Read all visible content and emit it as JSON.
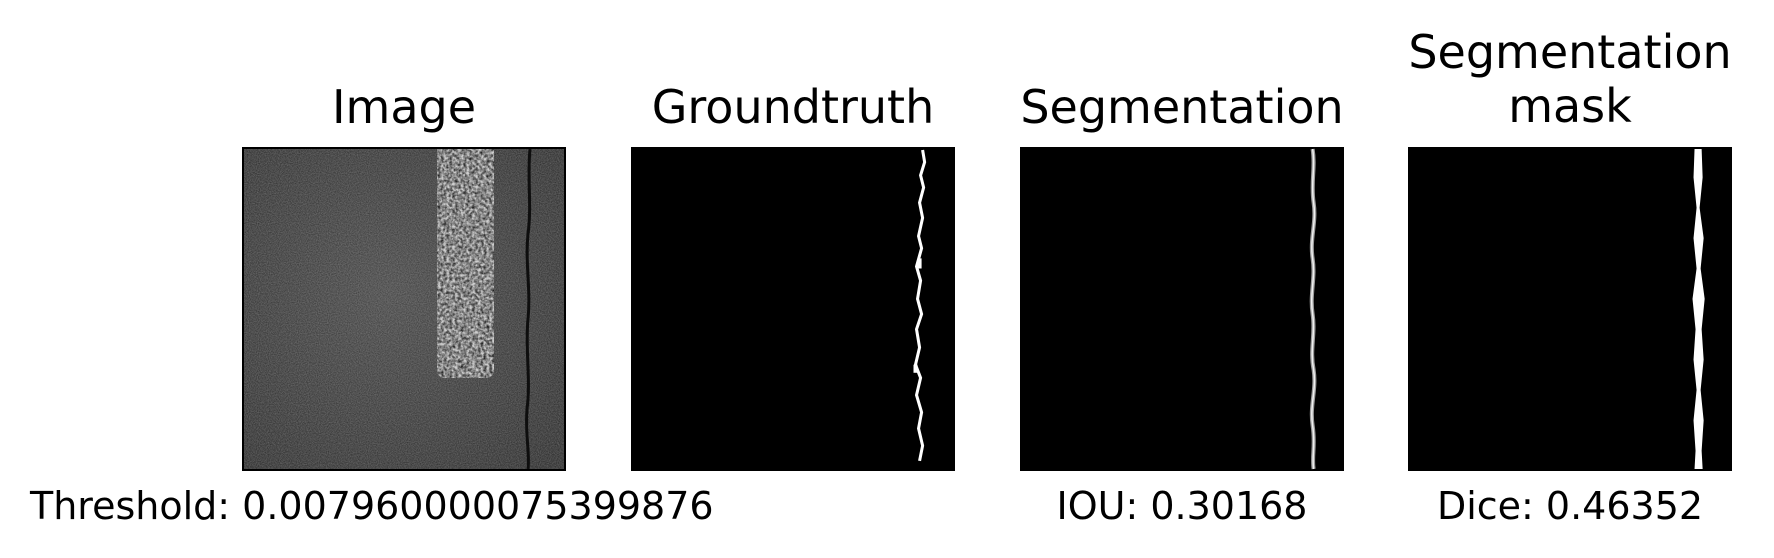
{
  "panels": {
    "image": {
      "title": "Image"
    },
    "groundtruth": {
      "title": "Groundtruth"
    },
    "segmentation": {
      "title": "Segmentation"
    },
    "mask": {
      "title_line1": "Segmentation",
      "title_line2": "mask"
    }
  },
  "captions": {
    "threshold": "Threshold: 0.007960000075399876",
    "iou": "IOU: 0.30168",
    "dice": "Dice: 0.46352"
  }
}
